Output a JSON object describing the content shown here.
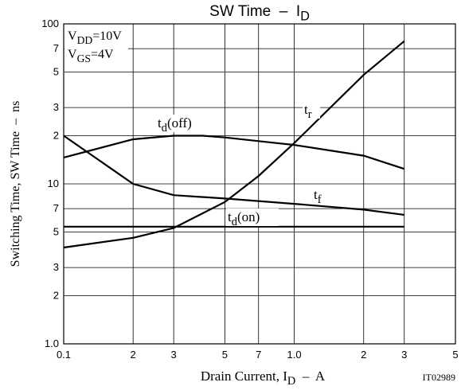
{
  "chart_data": {
    "type": "line",
    "title": [
      {
        "text": "SW Time  –  I"
      },
      {
        "text": "D",
        "sub": true
      }
    ],
    "x_label": [
      {
        "text": "Drain Current, I"
      },
      {
        "text": "D",
        "sub": true
      },
      {
        "text": "  –  A"
      }
    ],
    "y_label": [
      {
        "text": "Switching Time, SW Time  –  ns"
      }
    ],
    "figure_code": "IT02989",
    "conditions": [
      [
        {
          "text": "V"
        },
        {
          "text": "DD",
          "sub": true
        },
        {
          "text": "=10V"
        }
      ],
      [
        {
          "text": "V"
        },
        {
          "text": "GS",
          "sub": true
        },
        {
          "text": "=4V"
        }
      ]
    ],
    "log_x": true,
    "log_y": true,
    "grid": true,
    "xlim": [
      0.1,
      5
    ],
    "ylim": [
      1,
      100
    ],
    "xticks": [
      0.1,
      {
        "value": 0.2,
        "label": "2"
      },
      {
        "value": 0.3,
        "label": "3"
      },
      {
        "value": 0.5,
        "label": "5"
      },
      {
        "value": 0.7,
        "label": "7"
      },
      {
        "value": 1,
        "label": "1.0"
      },
      2,
      3,
      5
    ],
    "yticks": [
      {
        "value": 1,
        "label": "1.0"
      },
      2,
      3,
      5,
      7,
      10,
      {
        "value": 20,
        "label": "2"
      },
      {
        "value": 30,
        "label": "3"
      },
      {
        "value": 50,
        "label": "5"
      },
      {
        "value": 70,
        "label": "7"
      },
      100
    ],
    "series": [
      {
        "label": [
          {
            "text": "t"
          },
          {
            "text": "d",
            "sub": true
          },
          {
            "text": "(off)"
          }
        ],
        "color": "#000000",
        "x": [
          0.1,
          0.2,
          0.3,
          0.4,
          0.5,
          0.7,
          1.0,
          2,
          3
        ],
        "values": [
          14.6,
          19,
          20,
          20,
          19.5,
          18.5,
          17.5,
          15,
          12.4
        ]
      },
      {
        "label": [
          {
            "text": "t"
          },
          {
            "text": "r",
            "sub": true
          }
        ],
        "color": "#000000",
        "x": [
          0.1,
          0.2,
          0.3,
          0.5,
          0.7,
          1.0,
          2,
          3
        ],
        "values": [
          4.0,
          4.6,
          5.3,
          7.7,
          11.2,
          18,
          48,
          78
        ]
      },
      {
        "label": [
          {
            "text": "t"
          },
          {
            "text": "f",
            "sub": true
          }
        ],
        "color": "#000000",
        "x": [
          0.1,
          0.2,
          0.3,
          0.5,
          1.0,
          2,
          3
        ],
        "values": [
          20,
          10,
          8.5,
          8.1,
          7.5,
          6.9,
          6.4
        ]
      },
      {
        "label": [
          {
            "text": "t"
          },
          {
            "text": "d",
            "sub": true
          },
          {
            "text": "(on)"
          }
        ],
        "color": "#000000",
        "x": [
          0.1,
          3
        ],
        "values": [
          5.4,
          5.4
        ]
      }
    ]
  }
}
